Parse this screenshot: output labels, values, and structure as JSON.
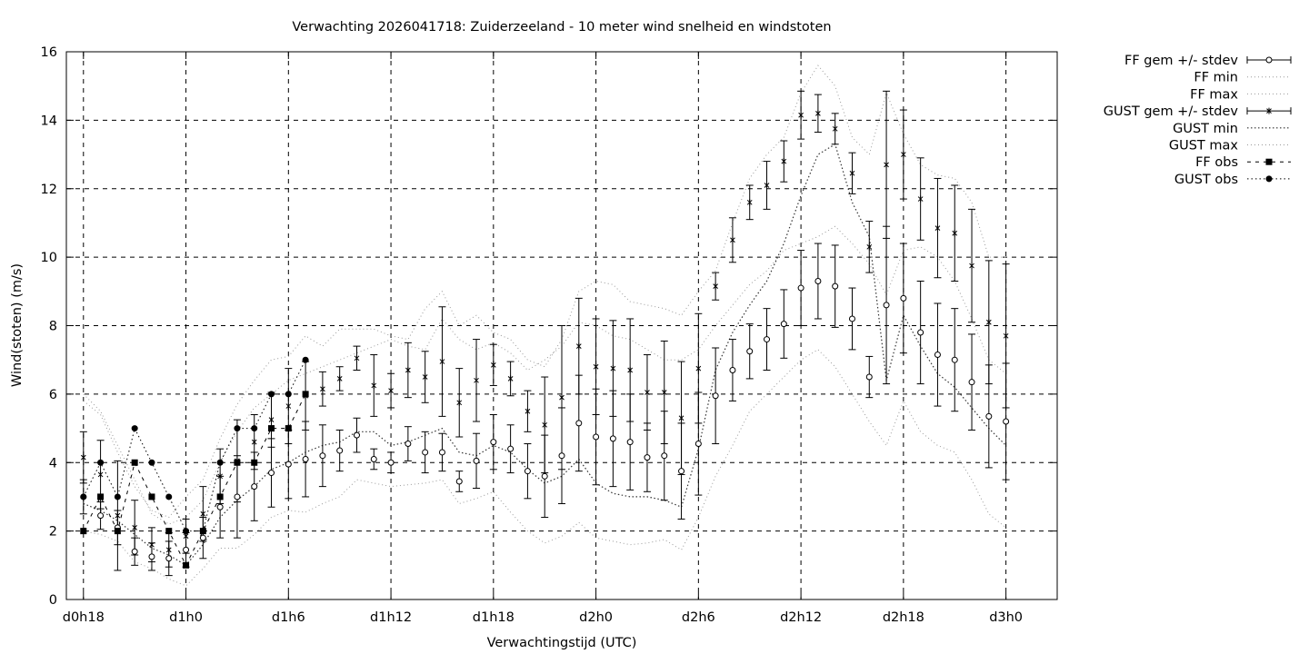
{
  "chart_data": {
    "type": "line",
    "title": "Verwachting 2026041718: Zuiderzeeland - 10 meter wind snelheid en windstoten",
    "xlabel": "Verwachtingstijd (UTC)",
    "ylabel": "Wind(stoten) (m/s)",
    "xlim": [
      17,
      75
    ],
    "ylim": [
      0,
      16
    ],
    "yticks": [
      0,
      2,
      4,
      6,
      8,
      10,
      12,
      14,
      16
    ],
    "xticks": [
      {
        "x": 18,
        "label": "d0h18"
      },
      {
        "x": 24,
        "label": "d1h0"
      },
      {
        "x": 30,
        "label": "d1h6"
      },
      {
        "x": 36,
        "label": "d1h12"
      },
      {
        "x": 42,
        "label": "d1h18"
      },
      {
        "x": 48,
        "label": "d2h0"
      },
      {
        "x": 54,
        "label": "d2h6"
      },
      {
        "x": 60,
        "label": "d2h12"
      },
      {
        "x": 66,
        "label": "d2h18"
      },
      {
        "x": 72,
        "label": "d3h0"
      }
    ],
    "grid": true,
    "legend_position": "outside-top-right",
    "legend": [
      {
        "label": "FF gem +/- stdev",
        "style": "errorbar-circle"
      },
      {
        "label": "FF min",
        "style": "dotted"
      },
      {
        "label": "FF max",
        "style": "dotted"
      },
      {
        "label": "GUST gem +/- stdev",
        "style": "errorbar-star"
      },
      {
        "label": "GUST min",
        "style": "dense-dotted"
      },
      {
        "label": "GUST max",
        "style": "dotted"
      },
      {
        "label": "FF obs",
        "style": "dashed-square"
      },
      {
        "label": "GUST obs",
        "style": "dotted-circle"
      }
    ],
    "x": [
      18,
      19,
      20,
      21,
      22,
      23,
      24,
      25,
      26,
      27,
      28,
      29,
      30,
      31,
      32,
      33,
      34,
      35,
      36,
      37,
      38,
      39,
      40,
      41,
      42,
      43,
      44,
      45,
      46,
      47,
      48,
      49,
      50,
      51,
      52,
      53,
      54,
      55,
      56,
      57,
      58,
      59,
      60,
      61,
      62,
      63,
      64,
      65,
      66,
      67,
      68,
      69,
      70,
      71,
      72
    ],
    "series": [
      {
        "name": "FF gem +/- stdev",
        "mean": [
          3.0,
          2.45,
          2.1,
          1.4,
          1.25,
          1.2,
          1.45,
          1.8,
          2.7,
          3.0,
          3.3,
          3.7,
          3.95,
          4.1,
          4.2,
          4.35,
          4.8,
          4.1,
          4.0,
          4.55,
          4.3,
          4.3,
          3.45,
          4.05,
          4.6,
          4.4,
          3.75,
          3.6,
          4.2,
          5.15,
          4.75,
          4.7,
          4.6,
          4.15,
          4.2,
          3.75,
          4.55,
          5.95,
          6.7,
          7.25,
          7.6,
          8.05,
          9.1,
          9.3,
          9.15,
          8.2,
          6.5,
          8.6,
          8.8,
          7.8,
          7.15,
          7.0,
          6.35,
          5.35,
          5.2
        ],
        "stdev": [
          0.5,
          0.4,
          0.5,
          0.4,
          0.4,
          0.5,
          0.5,
          0.6,
          0.9,
          1.2,
          1.0,
          1.0,
          1.0,
          1.1,
          0.9,
          0.6,
          0.5,
          0.3,
          0.3,
          0.5,
          0.6,
          0.55,
          0.3,
          0.8,
          0.8,
          0.7,
          0.8,
          1.2,
          1.4,
          1.4,
          1.4,
          1.4,
          1.4,
          1.0,
          1.3,
          1.4,
          1.5,
          1.4,
          0.9,
          0.8,
          0.9,
          1.0,
          1.1,
          1.1,
          1.2,
          0.9,
          0.6,
          2.3,
          1.6,
          1.5,
          1.5,
          1.5,
          1.4,
          1.5,
          1.7
        ]
      },
      {
        "name": "FF min",
        "y": [
          2.0,
          1.9,
          1.7,
          1.1,
          0.9,
          0.6,
          0.4,
          0.9,
          1.5,
          1.5,
          1.9,
          2.4,
          2.6,
          2.55,
          2.8,
          3.0,
          3.5,
          3.4,
          3.3,
          3.35,
          3.4,
          3.5,
          2.8,
          2.95,
          3.15,
          2.55,
          2.0,
          1.65,
          1.85,
          2.25,
          1.8,
          1.7,
          1.6,
          1.65,
          1.75,
          1.45,
          2.4,
          3.6,
          4.5,
          5.5,
          6.0,
          6.5,
          7.0,
          7.3,
          6.8,
          6.0,
          5.2,
          4.5,
          5.8,
          4.9,
          4.5,
          4.3,
          3.5,
          2.5,
          2.1
        ]
      },
      {
        "name": "FF max",
        "y": [
          6.0,
          5.5,
          4.5,
          3.5,
          2.5,
          2.2,
          2.4,
          2.9,
          4.0,
          4.9,
          5.6,
          6.0,
          6.4,
          6.6,
          6.8,
          7.0,
          7.2,
          7.4,
          7.6,
          7.4,
          7.3,
          8.2,
          7.6,
          7.3,
          7.5,
          7.2,
          6.7,
          7.0,
          7.4,
          8.1,
          8.0,
          7.7,
          7.6,
          7.3,
          7.0,
          7.0,
          7.3,
          8.0,
          8.6,
          9.2,
          9.6,
          10.2,
          10.4,
          10.6,
          10.9,
          10.4,
          9.8,
          8.9,
          10.2,
          10.3,
          10.0,
          9.3,
          8.2,
          7.0,
          6.6
        ]
      },
      {
        "name": "GUST gem +/- stdev",
        "mean": [
          4.15,
          3.65,
          2.45,
          2.1,
          1.6,
          1.45,
          1.85,
          2.5,
          3.6,
          4.05,
          4.6,
          5.25,
          5.65,
          5.95,
          6.15,
          6.45,
          7.05,
          6.25,
          6.1,
          6.7,
          6.5,
          6.95,
          5.75,
          6.4,
          6.85,
          6.45,
          5.5,
          5.1,
          5.9,
          7.4,
          6.8,
          6.75,
          6.7,
          6.05,
          6.05,
          5.3,
          6.75,
          9.15,
          10.5,
          11.6,
          12.1,
          12.8,
          14.15,
          14.2,
          13.75,
          12.45,
          10.3,
          12.7,
          13.0,
          11.7,
          10.85,
          10.7,
          9.75,
          8.1,
          7.7
        ],
        "stdev": [
          0.75,
          1.0,
          1.6,
          0.8,
          0.5,
          0.5,
          0.5,
          0.8,
          0.8,
          1.2,
          0.8,
          0.8,
          1.1,
          1.0,
          0.5,
          0.35,
          0.35,
          0.9,
          0.5,
          0.8,
          0.75,
          1.6,
          1.0,
          1.2,
          0.6,
          0.5,
          0.6,
          1.4,
          2.1,
          1.4,
          1.4,
          1.4,
          1.5,
          1.1,
          1.5,
          1.65,
          1.6,
          0.4,
          0.65,
          0.5,
          0.7,
          0.6,
          0.7,
          0.55,
          0.45,
          0.6,
          0.75,
          2.15,
          1.3,
          1.2,
          1.45,
          1.4,
          1.65,
          1.8,
          2.1
        ]
      },
      {
        "name": "GUST min",
        "y": [
          2.8,
          2.6,
          2.3,
          1.9,
          1.5,
          1.3,
          1.0,
          1.6,
          2.4,
          2.9,
          3.3,
          3.8,
          4.0,
          4.3,
          4.5,
          4.6,
          4.9,
          4.9,
          4.5,
          4.6,
          4.8,
          5.0,
          4.3,
          4.2,
          4.5,
          4.3,
          3.8,
          3.4,
          3.6,
          4.1,
          3.4,
          3.1,
          3.0,
          3.0,
          2.9,
          2.7,
          4.4,
          6.7,
          7.8,
          8.6,
          9.3,
          10.4,
          11.8,
          13.0,
          13.3,
          11.6,
          10.6,
          6.4,
          8.3,
          7.4,
          6.6,
          6.2,
          5.6,
          5.0,
          4.5
        ]
      },
      {
        "name": "GUST max",
        "y": [
          5.8,
          5.4,
          4.3,
          3.3,
          2.6,
          2.4,
          3.0,
          3.5,
          4.7,
          5.7,
          6.4,
          7.0,
          7.1,
          7.7,
          7.4,
          7.9,
          7.9,
          7.9,
          7.7,
          7.6,
          8.5,
          9.0,
          8.0,
          8.3,
          7.8,
          7.6,
          7.0,
          6.8,
          7.6,
          9.0,
          9.3,
          9.2,
          8.7,
          8.6,
          8.5,
          8.3,
          9.0,
          9.6,
          11.0,
          12.3,
          13.0,
          13.5,
          14.8,
          15.6,
          15.0,
          13.5,
          13.0,
          14.8,
          13.6,
          12.7,
          12.4,
          12.3,
          11.6,
          10.0,
          10.0
        ]
      },
      {
        "name": "FF obs",
        "x": [
          18,
          19,
          20,
          21,
          22,
          23,
          24,
          25,
          26,
          27,
          28,
          29,
          30,
          31
        ],
        "y": [
          2,
          3,
          2,
          4,
          3,
          2,
          1,
          2,
          3,
          4,
          4,
          5,
          5,
          6
        ]
      },
      {
        "name": "GUST obs",
        "x": [
          18,
          19,
          20,
          21,
          22,
          23,
          24,
          25,
          26,
          27,
          28,
          29,
          30,
          31
        ],
        "y": [
          3,
          4,
          3,
          5,
          4,
          3,
          2,
          2,
          4,
          5,
          5,
          6,
          6,
          7
        ]
      }
    ]
  }
}
